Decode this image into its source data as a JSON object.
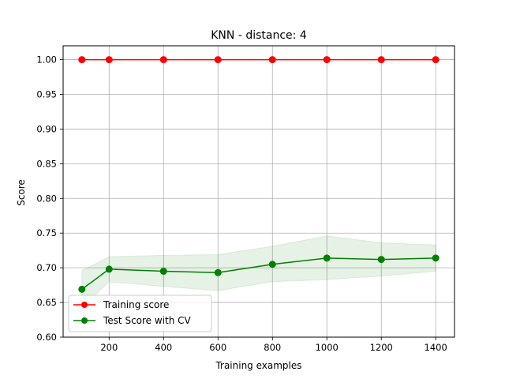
{
  "chart_data": {
    "type": "line",
    "title": "KNN - distance: 4",
    "xlabel": "Training examples",
    "ylabel": "Score",
    "xlim": [
      31,
      1469
    ],
    "ylim": [
      0.6,
      1.02
    ],
    "xticks": [
      200,
      400,
      600,
      800,
      1000,
      1200,
      1400
    ],
    "xtick_labels": [
      "200",
      "400",
      "600",
      "800",
      "1000",
      "1200",
      "1400"
    ],
    "yticks": [
      0.6,
      0.65,
      0.7,
      0.75,
      0.8,
      0.85,
      0.9,
      0.95,
      1.0
    ],
    "ytick_labels": [
      "0.60",
      "0.65",
      "0.70",
      "0.75",
      "0.80",
      "0.85",
      "0.90",
      "0.95",
      "1.00"
    ],
    "grid": true,
    "legend_position": "lower-left",
    "x": [
      100,
      200,
      400,
      600,
      800,
      1000,
      1200,
      1400
    ],
    "series": [
      {
        "name": "Training score",
        "color": "#ff0000",
        "marker": "circle",
        "values": [
          1.0,
          1.0,
          1.0,
          1.0,
          1.0,
          1.0,
          1.0,
          1.0
        ]
      },
      {
        "name": "Test Score with CV",
        "color": "#008000",
        "marker": "circle",
        "values": [
          0.669,
          0.698,
          0.695,
          0.693,
          0.705,
          0.714,
          0.712,
          0.714
        ],
        "band_lower": [
          0.643,
          0.68,
          0.673,
          0.667,
          0.68,
          0.683,
          0.688,
          0.695
        ],
        "band_upper": [
          0.696,
          0.716,
          0.718,
          0.719,
          0.731,
          0.746,
          0.736,
          0.733
        ],
        "band_color": "#008000"
      }
    ]
  }
}
